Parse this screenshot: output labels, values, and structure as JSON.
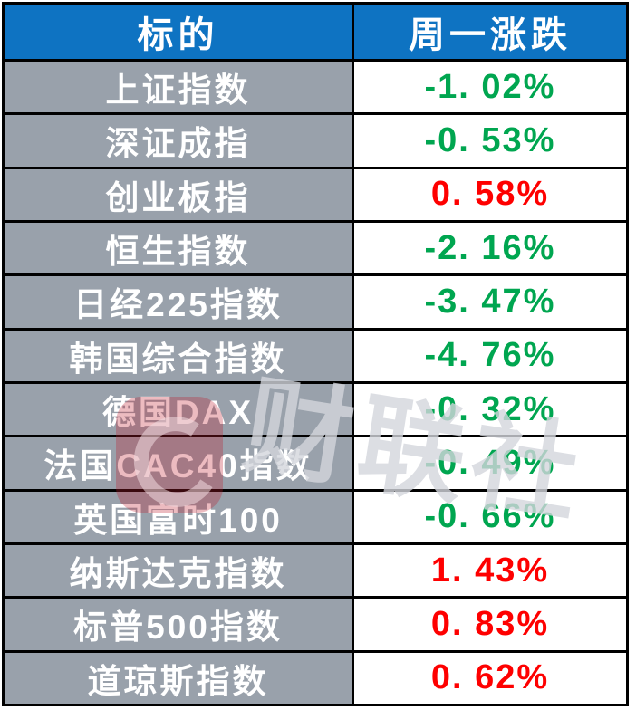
{
  "table": {
    "header": {
      "target": "标的",
      "change": "周一涨跌"
    },
    "rows": [
      {
        "name": "上证指数",
        "change": "-1. 02%",
        "direction": "down"
      },
      {
        "name": "深证成指",
        "change": "-0. 53%",
        "direction": "down"
      },
      {
        "name": "创业板指",
        "change": "0. 58%",
        "direction": "up"
      },
      {
        "name": "恒生指数",
        "change": "-2. 16%",
        "direction": "down"
      },
      {
        "name": "日经225指数",
        "change": "-3. 47%",
        "direction": "down"
      },
      {
        "name": "韩国综合指数",
        "change": "-4. 76%",
        "direction": "down"
      },
      {
        "name": "德国DAX",
        "change": "-0. 32%",
        "direction": "down"
      },
      {
        "name": "法国CAC40指数",
        "change": "-0. 49%",
        "direction": "down"
      },
      {
        "name": "英国富时100",
        "change": "-0. 66%",
        "direction": "down"
      },
      {
        "name": "纳斯达克指数",
        "change": "1. 43%",
        "direction": "up"
      },
      {
        "name": "标普500指数",
        "change": "0. 83%",
        "direction": "up"
      },
      {
        "name": "道琼斯指数",
        "change": "0. 62%",
        "direction": "up"
      }
    ]
  },
  "watermark": {
    "text": "财联社",
    "logo": "cailianshe-c-logo"
  },
  "colors": {
    "header_bg": "#0e73c2",
    "label_bg": "#99a1ab",
    "up_red": "#fe0000",
    "down_green": "#00a650",
    "border": "#000000",
    "header_text": "#ffffff"
  },
  "chart_data": {
    "type": "table",
    "title": "",
    "columns": [
      "标的",
      "周一涨跌"
    ],
    "rows": [
      [
        "上证指数",
        -1.02
      ],
      [
        "深证成指",
        -0.53
      ],
      [
        "创业板指",
        0.58
      ],
      [
        "恒生指数",
        -2.16
      ],
      [
        "日经225指数",
        -3.47
      ],
      [
        "韩国综合指数",
        -4.76
      ],
      [
        "德国DAX",
        -0.32
      ],
      [
        "法国CAC40指数",
        -0.49
      ],
      [
        "英国富时100",
        -0.66
      ],
      [
        "纳斯达克指数",
        1.43
      ],
      [
        "标普500指数",
        0.83
      ],
      [
        "道琼斯指数",
        0.62
      ]
    ],
    "value_unit": "%",
    "color_rule": "negative values green (#00a650), positive values red (#fe0000)"
  }
}
